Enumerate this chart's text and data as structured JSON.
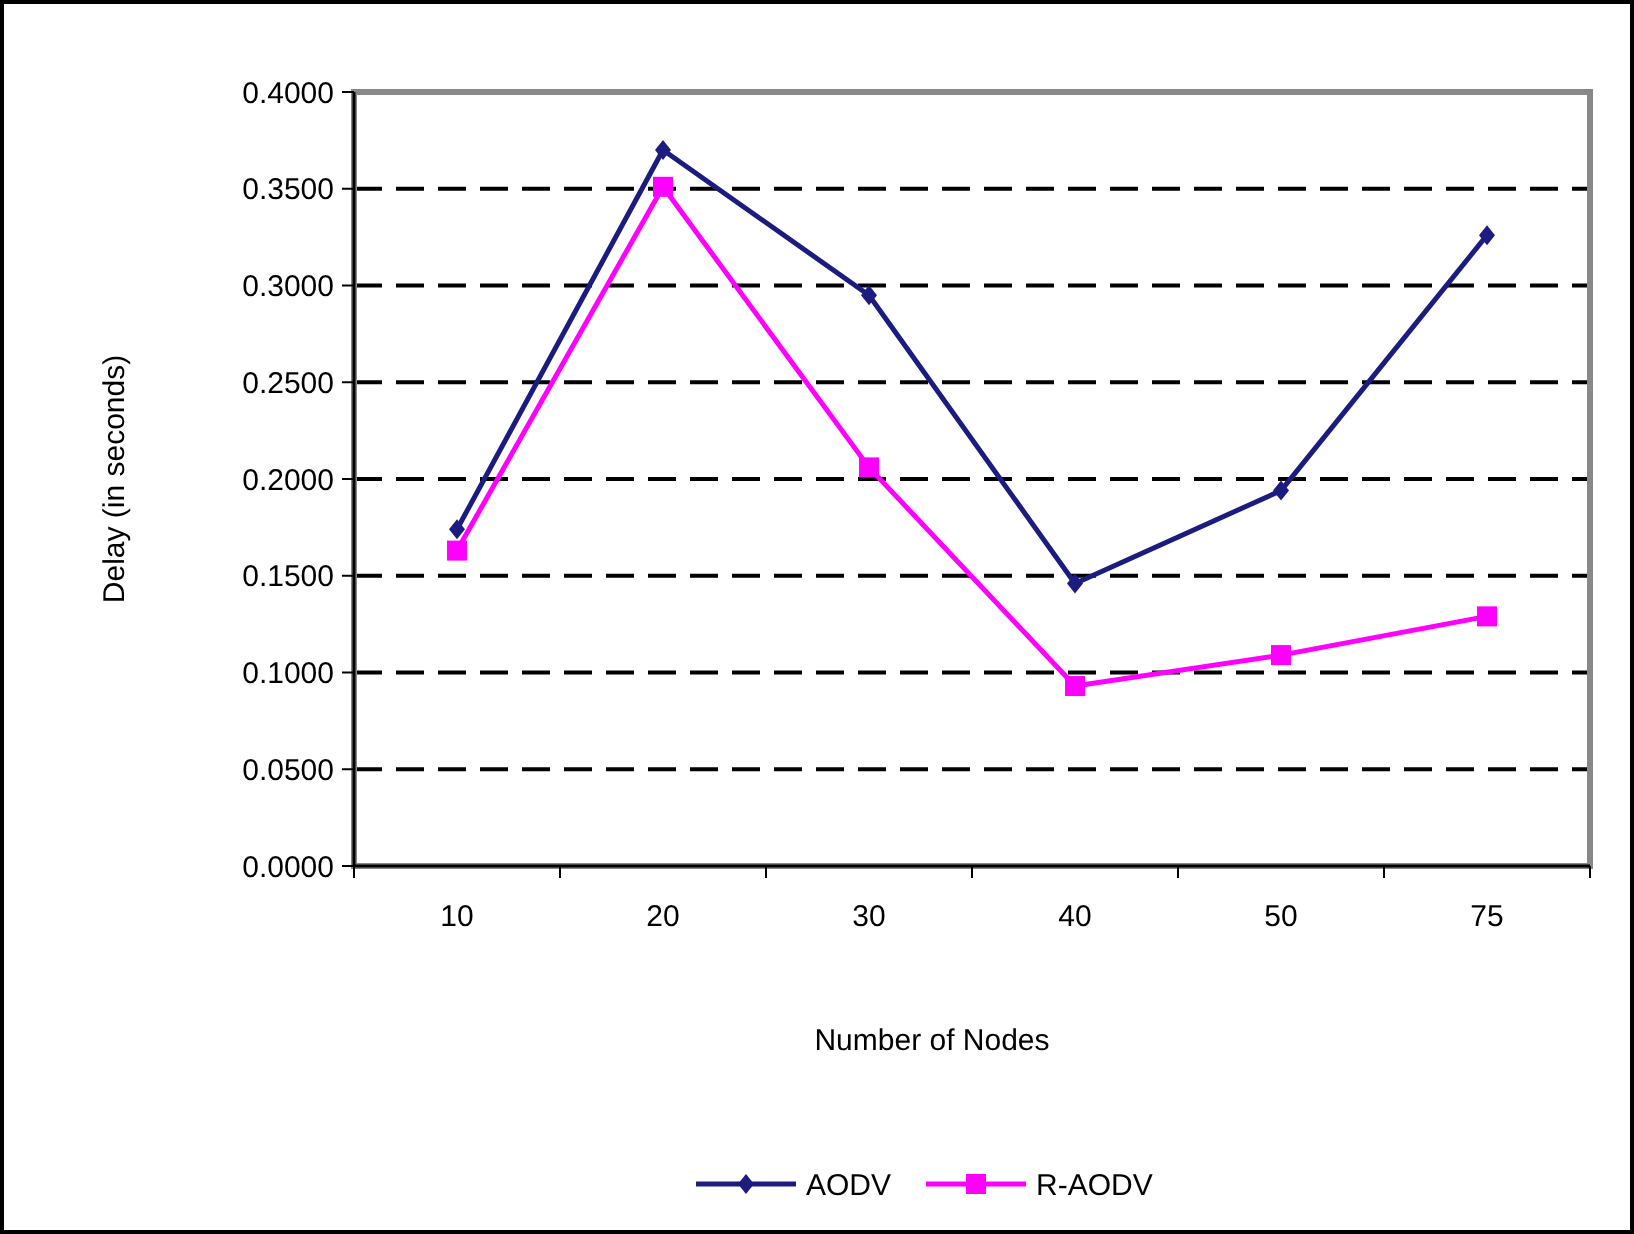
{
  "chart_data": {
    "type": "line",
    "xlabel": "Number of Nodes",
    "ylabel": "Delay  (in seconds)",
    "categories": [
      "10",
      "20",
      "30",
      "40",
      "50",
      "75"
    ],
    "series": [
      {
        "name": "AODV",
        "color": "#1c1c80",
        "marker": "diamond",
        "values": [
          0.174,
          0.37,
          0.295,
          0.146,
          0.194,
          0.326
        ]
      },
      {
        "name": "R-AODV",
        "color": "#ff00ff",
        "marker": "square",
        "values": [
          0.163,
          0.351,
          0.206,
          0.093,
          0.109,
          0.129
        ]
      }
    ],
    "ylim": [
      0,
      0.4
    ],
    "yticks": [
      {
        "value": 0,
        "label": "0.0000"
      },
      {
        "value": 0.05,
        "label": "0.0500"
      },
      {
        "value": 0.1,
        "label": "0.1000"
      },
      {
        "value": 0.15,
        "label": "0.1500"
      },
      {
        "value": 0.2,
        "label": "0.2000"
      },
      {
        "value": 0.25,
        "label": "0.2500"
      },
      {
        "value": 0.3,
        "label": "0.3000"
      },
      {
        "value": 0.35,
        "label": "0.3500"
      },
      {
        "value": 0.4,
        "label": "0.4000"
      }
    ],
    "grid": "y",
    "line_style": "solid",
    "legend": "bottom"
  }
}
